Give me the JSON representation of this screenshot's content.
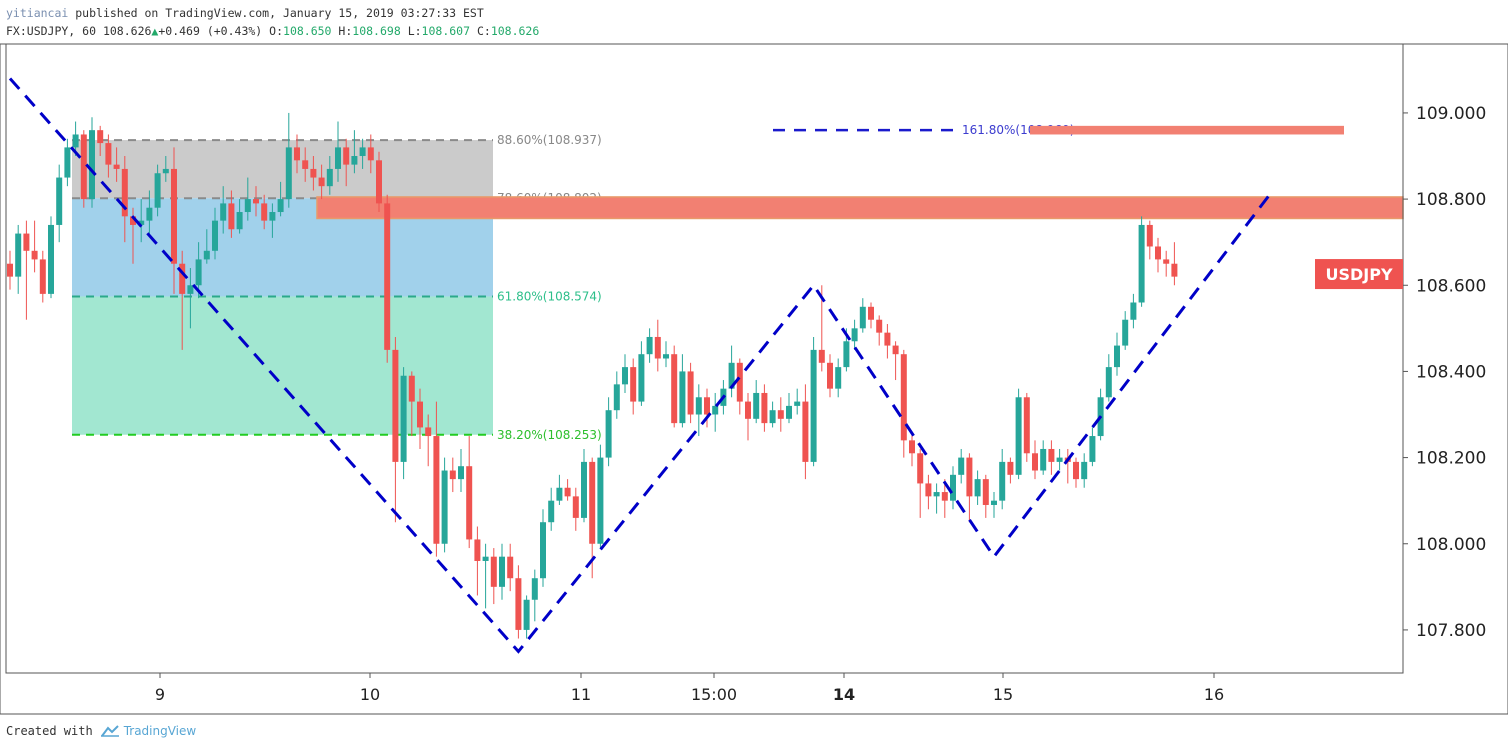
{
  "header": {
    "user": "yitiancai",
    "published": "published on TradingView.com, January 15, 2019 03:27:33 EST",
    "symbol": "FX:USDJPY, 60",
    "last": "108.626",
    "change": "+0.469 (+0.43%)",
    "open_label": "O:",
    "open": "108.650",
    "high_label": "H:",
    "high": "108.698",
    "low_label": "L:",
    "low": "108.607",
    "close_label": "C:",
    "close": "108.626"
  },
  "footer": {
    "created_with": "Created with",
    "brand": "TradingView"
  },
  "colors": {
    "up": "#26a69a",
    "down": "#ef5350",
    "trend": "#0000c8",
    "fib886": "#c8c8c8",
    "fib786": "#9ccfea",
    "fib618": "#9de6cf",
    "resistance": "#f28072",
    "price_badge": "#ef5350"
  },
  "chart_data": {
    "type": "candlestick",
    "symbol": "USDJPY",
    "timeframe": "60",
    "ylim": [
      107.7,
      109.16
    ],
    "y_ticks": [
      "109.000",
      "108.800",
      "108.600",
      "108.400",
      "108.200",
      "108.000",
      "107.800"
    ],
    "x_ticks": [
      {
        "label": "9",
        "bold": false
      },
      {
        "label": "10",
        "bold": false
      },
      {
        "label": "11",
        "bold": false
      },
      {
        "label": "15:00",
        "bold": false
      },
      {
        "label": "14",
        "bold": true
      },
      {
        "label": "15",
        "bold": false
      },
      {
        "label": "16",
        "bold": false
      }
    ],
    "price_label": "USDJPY",
    "current_price": 108.626,
    "candles": [
      [
        108.65,
        108.62,
        108.68,
        108.59
      ],
      [
        108.62,
        108.72,
        108.74,
        108.58
      ],
      [
        108.72,
        108.68,
        108.75,
        108.52
      ],
      [
        108.68,
        108.66,
        108.75,
        108.63
      ],
      [
        108.66,
        108.58,
        108.68,
        108.56
      ],
      [
        108.58,
        108.74,
        108.76,
        108.57
      ],
      [
        108.74,
        108.85,
        108.88,
        108.7
      ],
      [
        108.85,
        108.92,
        108.94,
        108.83
      ],
      [
        108.92,
        108.95,
        108.98,
        108.9
      ],
      [
        108.95,
        108.8,
        108.96,
        108.78
      ],
      [
        108.8,
        108.96,
        108.99,
        108.78
      ],
      [
        108.96,
        108.93,
        108.97,
        108.9
      ],
      [
        108.93,
        108.88,
        108.95,
        108.85
      ],
      [
        108.88,
        108.87,
        108.92,
        108.84
      ],
      [
        108.87,
        108.76,
        108.9,
        108.7
      ],
      [
        108.76,
        108.74,
        108.78,
        108.65
      ],
      [
        108.74,
        108.75,
        108.8,
        108.7
      ],
      [
        108.75,
        108.78,
        108.82,
        108.72
      ],
      [
        108.78,
        108.86,
        108.88,
        108.76
      ],
      [
        108.86,
        108.87,
        108.9,
        108.84
      ],
      [
        108.87,
        108.65,
        108.92,
        108.58
      ],
      [
        108.65,
        108.58,
        108.68,
        108.45
      ],
      [
        108.58,
        108.6,
        108.64,
        108.5
      ],
      [
        108.6,
        108.66,
        108.7,
        108.57
      ],
      [
        108.66,
        108.68,
        108.73,
        108.65
      ],
      [
        108.68,
        108.75,
        108.78,
        108.66
      ],
      [
        108.75,
        108.79,
        108.83,
        108.72
      ],
      [
        108.79,
        108.73,
        108.82,
        108.71
      ],
      [
        108.73,
        108.77,
        108.8,
        108.72
      ],
      [
        108.77,
        108.8,
        108.85,
        108.75
      ],
      [
        108.8,
        108.79,
        108.83,
        108.76
      ],
      [
        108.79,
        108.75,
        108.81,
        108.73
      ],
      [
        108.75,
        108.77,
        108.79,
        108.71
      ],
      [
        108.77,
        108.8,
        108.84,
        108.76
      ],
      [
        108.8,
        108.92,
        109.0,
        108.78
      ],
      [
        108.92,
        108.89,
        108.95,
        108.86
      ],
      [
        108.89,
        108.87,
        108.92,
        108.84
      ],
      [
        108.87,
        108.85,
        108.9,
        108.82
      ],
      [
        108.85,
        108.83,
        108.88,
        108.8
      ],
      [
        108.83,
        108.87,
        108.9,
        108.81
      ],
      [
        108.87,
        108.92,
        108.98,
        108.84
      ],
      [
        108.92,
        108.88,
        108.94,
        108.83
      ],
      [
        108.88,
        108.9,
        108.96,
        108.86
      ],
      [
        108.9,
        108.92,
        108.94,
        108.87
      ],
      [
        108.92,
        108.89,
        108.95,
        108.86
      ],
      [
        108.89,
        108.79,
        108.91,
        108.77
      ],
      [
        108.79,
        108.45,
        108.81,
        108.42
      ],
      [
        108.45,
        108.19,
        108.48,
        108.05
      ],
      [
        108.19,
        108.39,
        108.41,
        108.15
      ],
      [
        108.39,
        108.33,
        108.4,
        108.25
      ],
      [
        108.33,
        108.27,
        108.36,
        108.22
      ],
      [
        108.27,
        108.25,
        108.3,
        108.18
      ],
      [
        108.25,
        108.0,
        108.33,
        107.97
      ],
      [
        108.0,
        108.17,
        108.2,
        107.98
      ],
      [
        108.17,
        108.15,
        108.2,
        108.12
      ],
      [
        108.15,
        108.18,
        108.22,
        108.12
      ],
      [
        108.18,
        108.01,
        108.25,
        107.99
      ],
      [
        108.01,
        107.96,
        108.04,
        107.88
      ],
      [
        107.96,
        107.97,
        108.0,
        107.85
      ],
      [
        107.97,
        107.9,
        107.99,
        107.86
      ],
      [
        107.9,
        107.97,
        108.0,
        107.87
      ],
      [
        107.97,
        107.92,
        108.0,
        107.89
      ],
      [
        107.92,
        107.8,
        107.95,
        107.78
      ],
      [
        107.8,
        107.87,
        107.88,
        107.78
      ],
      [
        107.87,
        107.92,
        107.94,
        107.82
      ],
      [
        107.92,
        108.05,
        108.08,
        107.9
      ],
      [
        108.05,
        108.1,
        108.13,
        108.03
      ],
      [
        108.1,
        108.13,
        108.16,
        108.09
      ],
      [
        108.13,
        108.11,
        108.15,
        108.1
      ],
      [
        108.11,
        108.06,
        108.13,
        108.03
      ],
      [
        108.06,
        108.19,
        108.22,
        108.05
      ],
      [
        108.19,
        108.0,
        108.2,
        107.92
      ],
      [
        108.0,
        108.2,
        108.23,
        107.99
      ],
      [
        108.2,
        108.31,
        108.34,
        108.18
      ],
      [
        108.31,
        108.37,
        108.4,
        108.29
      ],
      [
        108.37,
        108.41,
        108.44,
        108.35
      ],
      [
        108.41,
        108.33,
        108.43,
        108.3
      ],
      [
        108.33,
        108.44,
        108.47,
        108.32
      ],
      [
        108.44,
        108.48,
        108.5,
        108.42
      ],
      [
        108.48,
        108.43,
        108.52,
        108.4
      ],
      [
        108.43,
        108.44,
        108.47,
        108.41
      ],
      [
        108.44,
        108.28,
        108.46,
        108.27
      ],
      [
        108.28,
        108.4,
        108.44,
        108.27
      ],
      [
        108.4,
        108.3,
        108.42,
        108.28
      ],
      [
        108.3,
        108.34,
        108.37,
        108.25
      ],
      [
        108.34,
        108.3,
        108.36,
        108.27
      ],
      [
        108.3,
        108.32,
        108.35,
        108.26
      ],
      [
        108.32,
        108.36,
        108.38,
        108.3
      ],
      [
        108.36,
        108.42,
        108.46,
        108.34
      ],
      [
        108.42,
        108.33,
        108.43,
        108.3
      ],
      [
        108.33,
        108.29,
        108.35,
        108.24
      ],
      [
        108.29,
        108.35,
        108.38,
        108.28
      ],
      [
        108.35,
        108.28,
        108.37,
        108.26
      ],
      [
        108.28,
        108.31,
        108.33,
        108.27
      ],
      [
        108.31,
        108.29,
        108.34,
        108.26
      ],
      [
        108.29,
        108.32,
        108.35,
        108.28
      ],
      [
        108.32,
        108.33,
        108.36,
        108.3
      ],
      [
        108.33,
        108.19,
        108.37,
        108.15
      ],
      [
        108.19,
        108.45,
        108.48,
        108.18
      ],
      [
        108.45,
        108.42,
        108.6,
        108.4
      ],
      [
        108.42,
        108.36,
        108.44,
        108.34
      ],
      [
        108.36,
        108.41,
        108.43,
        108.34
      ],
      [
        108.41,
        108.47,
        108.5,
        108.4
      ],
      [
        108.47,
        108.5,
        108.52,
        108.45
      ],
      [
        108.5,
        108.55,
        108.57,
        108.49
      ],
      [
        108.55,
        108.52,
        108.56,
        108.5
      ],
      [
        108.52,
        108.49,
        108.53,
        108.46
      ],
      [
        108.49,
        108.46,
        108.51,
        108.43
      ],
      [
        108.46,
        108.44,
        108.47,
        108.38
      ],
      [
        108.44,
        108.24,
        108.45,
        108.2
      ],
      [
        108.24,
        108.21,
        108.26,
        108.18
      ],
      [
        108.21,
        108.14,
        108.22,
        108.06
      ],
      [
        108.14,
        108.11,
        108.16,
        108.08
      ],
      [
        108.11,
        108.12,
        108.14,
        108.07
      ],
      [
        108.12,
        108.1,
        108.15,
        108.06
      ],
      [
        108.1,
        108.16,
        108.18,
        108.08
      ],
      [
        108.16,
        108.2,
        108.22,
        108.14
      ],
      [
        108.2,
        108.11,
        108.21,
        108.05
      ],
      [
        108.11,
        108.15,
        108.17,
        108.09
      ],
      [
        108.15,
        108.09,
        108.16,
        108.06
      ],
      [
        108.09,
        108.1,
        108.12,
        108.06
      ],
      [
        108.1,
        108.19,
        108.22,
        108.08
      ],
      [
        108.19,
        108.16,
        108.2,
        108.14
      ],
      [
        108.16,
        108.34,
        108.36,
        108.15
      ],
      [
        108.34,
        108.21,
        108.35,
        108.19
      ],
      [
        108.21,
        108.17,
        108.24,
        108.15
      ],
      [
        108.17,
        108.22,
        108.24,
        108.16
      ],
      [
        108.22,
        108.19,
        108.24,
        108.16
      ],
      [
        108.19,
        108.2,
        108.22,
        108.17
      ],
      [
        108.2,
        108.19,
        108.22,
        108.14
      ],
      [
        108.19,
        108.15,
        108.2,
        108.13
      ],
      [
        108.15,
        108.19,
        108.21,
        108.13
      ],
      [
        108.19,
        108.25,
        108.27,
        108.18
      ],
      [
        108.25,
        108.34,
        108.36,
        108.24
      ],
      [
        108.34,
        108.41,
        108.44,
        108.33
      ],
      [
        108.41,
        108.46,
        108.49,
        108.39
      ],
      [
        108.46,
        108.52,
        108.54,
        108.45
      ],
      [
        108.52,
        108.56,
        108.58,
        108.5
      ],
      [
        108.56,
        108.74,
        108.76,
        108.55
      ],
      [
        108.74,
        108.69,
        108.75,
        108.66
      ],
      [
        108.69,
        108.66,
        108.71,
        108.63
      ],
      [
        108.66,
        108.65,
        108.68,
        108.62
      ],
      [
        108.65,
        108.62,
        108.7,
        108.6
      ]
    ],
    "trendline_points": [
      {
        "x": 0,
        "y": 109.08
      },
      {
        "x": 62,
        "y": 107.75
      },
      {
        "x": 98,
        "y": 108.6
      },
      {
        "x": 120,
        "y": 107.97
      },
      {
        "x": 154,
        "y": 108.82
      }
    ],
    "fib_levels": [
      {
        "label": "88.60%(108.937)",
        "value": 108.937,
        "color": "#888888"
      },
      {
        "label": "78.60%(108.802)",
        "value": 108.802,
        "color": "#888888"
      },
      {
        "label": "61.80%(108.574)",
        "value": 108.574,
        "color": "#2dbf8a"
      },
      {
        "label": "38.20%(108.253)",
        "value": 108.253,
        "color": "#2dbf2d"
      }
    ],
    "fib_ext": {
      "label": "161.80%(108.960)",
      "value": 108.96,
      "color": "#3c3ccf"
    },
    "resistance_zones": [
      {
        "from": 108.755,
        "to": 108.805
      },
      {
        "from": 108.95,
        "to": 108.97
      }
    ]
  }
}
